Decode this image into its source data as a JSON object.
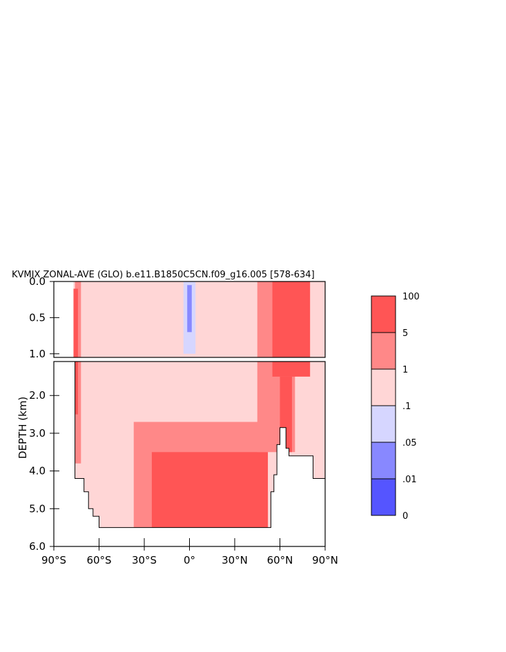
{
  "chart_data": {
    "type": "heatmap",
    "title": "KVMIX ZONAL-AVE (GLO) b.e11.B1850C5CN.f09_g16.005 [578-634]",
    "ylabel": "DEPTH (km)",
    "xlim": [
      -90,
      90
    ],
    "ylim_upper_km": [
      0.0,
      1.05
    ],
    "ylim_lower_km": [
      1.1,
      6.0
    ],
    "x_ticks": [
      "90°S",
      "60°S",
      "30°S",
      "0°",
      "30°N",
      "60°N",
      "90°N"
    ],
    "x_tick_values": [
      -90,
      -60,
      -30,
      0,
      30,
      60,
      90
    ],
    "upper_y_ticks": [
      "0.0",
      "0.5",
      "1.0"
    ],
    "upper_y_tick_values": [
      0.0,
      0.5,
      1.0
    ],
    "lower_y_ticks": [
      "2.0",
      "3.0",
      "4.0",
      "5.0",
      "6.0"
    ],
    "lower_y_tick_values": [
      2.0,
      3.0,
      4.0,
      5.0,
      6.0
    ],
    "colorbar": {
      "labels": [
        "100",
        "5",
        "1",
        ".1",
        ".05",
        ".01",
        "0"
      ],
      "bins": [
        {
          "from": 5,
          "to": 100,
          "color": "#ff5555"
        },
        {
          "from": 1,
          "to": 5,
          "color": "#ff8888"
        },
        {
          "from": 0.1,
          "to": 1,
          "color": "#ffd6d6"
        },
        {
          "from": 0.05,
          "to": 0.1,
          "color": "#d6d6ff"
        },
        {
          "from": 0.01,
          "to": 0.05,
          "color": "#8888ff"
        },
        {
          "from": 0,
          "to": 0.01,
          "color": "#5555ff"
        }
      ]
    },
    "ocean_bottom_km": [
      {
        "lat": -77,
        "depth": 1.0
      },
      {
        "lat": -76,
        "depth": 4.2
      },
      {
        "lat": -70,
        "depth": 4.55
      },
      {
        "lat": -67,
        "depth": 5.0
      },
      {
        "lat": -64,
        "depth": 5.2
      },
      {
        "lat": -60,
        "depth": 5.5
      },
      {
        "lat": -52,
        "depth": 5.5
      },
      {
        "lat": 52,
        "depth": 5.5
      },
      {
        "lat": 54,
        "depth": 4.55
      },
      {
        "lat": 56,
        "depth": 4.1
      },
      {
        "lat": 58,
        "depth": 3.3
      },
      {
        "lat": 60,
        "depth": 2.85
      },
      {
        "lat": 64,
        "depth": 3.4
      },
      {
        "lat": 66,
        "depth": 3.6
      },
      {
        "lat": 72,
        "depth": 3.6
      },
      {
        "lat": 82,
        "depth": 4.2
      },
      {
        "lat": 90,
        "depth": 4.2
      }
    ],
    "regions": [
      {
        "level": ".1-1",
        "lat": [
          -78,
          90
        ],
        "depth": [
          0.0,
          5.5
        ]
      },
      {
        "level": "1-5",
        "lat": [
          -76,
          -72
        ],
        "depth": [
          0.0,
          3.8
        ]
      },
      {
        "level": "5-100",
        "lat": [
          -77,
          -74
        ],
        "depth": [
          0.1,
          2.5
        ]
      },
      {
        "level": "1-5",
        "lat": [
          -37,
          52
        ],
        "depth": [
          2.7,
          5.5
        ]
      },
      {
        "level": "5-100",
        "lat": [
          -25,
          52
        ],
        "depth": [
          3.5,
          5.5
        ]
      },
      {
        "level": "1-5",
        "lat": [
          45,
          70
        ],
        "depth": [
          0.0,
          3.5
        ]
      },
      {
        "level": "5-100",
        "lat": [
          55,
          80
        ],
        "depth": [
          0.0,
          1.5
        ]
      },
      {
        "level": "5-100",
        "lat": [
          60,
          68
        ],
        "depth": [
          1.5,
          3.5
        ]
      },
      {
        "level": ".05-.1",
        "lat": [
          -4,
          4
        ],
        "depth": [
          0.0,
          1.0
        ]
      },
      {
        "level": ".01-.05",
        "lat": [
          -1.5,
          1.5
        ],
        "depth": [
          0.05,
          0.7
        ]
      }
    ]
  }
}
